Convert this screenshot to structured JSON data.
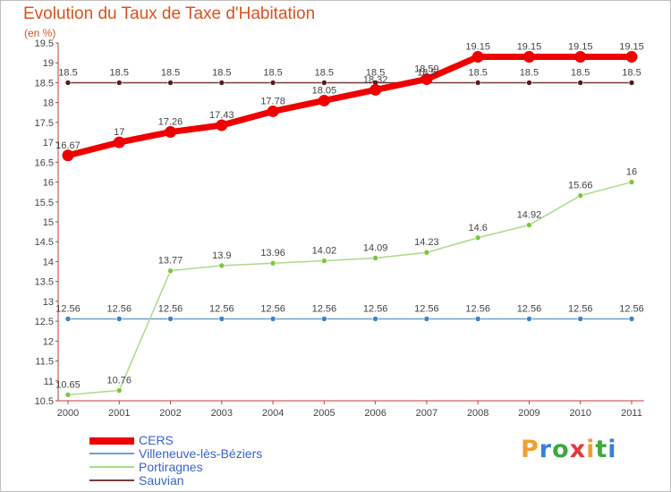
{
  "header": {
    "title": "Evolution du Taux de Taxe d'Habitation",
    "unit": "(en %)"
  },
  "logo": {
    "letters": [
      "P",
      "r",
      "o",
      "x",
      "i",
      "t",
      "i"
    ],
    "colors": [
      "#f0a030",
      "#3a7fd5",
      "#3fa83f",
      "#e03a3a",
      "#f0a030",
      "#3fa83f",
      "#3a7fd5"
    ]
  },
  "chart_data": {
    "type": "line",
    "x": [
      "2000",
      "2001",
      "2002",
      "2003",
      "2004",
      "2005",
      "2006",
      "2007",
      "2008",
      "2009",
      "2010",
      "2011"
    ],
    "ylim": [
      10.5,
      19.5
    ],
    "yticks": [
      "10.5",
      "11",
      "11.5",
      "12",
      "12.5",
      "13",
      "13.5",
      "14",
      "14.5",
      "15",
      "15.5",
      "16",
      "16.5",
      "17",
      "17.5",
      "18",
      "18.5",
      "19",
      "19.5"
    ],
    "grid": false,
    "legend_position": "bottom-left",
    "series": [
      {
        "name": "CERS",
        "color": "#ee0000",
        "values": [
          16.67,
          17,
          17.26,
          17.43,
          17.78,
          18.05,
          18.32,
          18.59,
          19.15,
          19.15,
          19.15,
          19.15
        ],
        "labels": [
          "16.67",
          "17",
          "17.26",
          "17.43",
          "17.78",
          "18.05",
          "18.32",
          "18.59",
          "19.15",
          "19.15",
          "19.15",
          "19.15"
        ]
      },
      {
        "name": "Villeneuve-lès-Béziers",
        "color": "#6fa0c8",
        "marker_color": "#3f82c4",
        "values": [
          12.56,
          12.56,
          12.56,
          12.56,
          12.56,
          12.56,
          12.56,
          12.56,
          12.56,
          12.56,
          12.56,
          12.56
        ],
        "labels": [
          "12.56",
          "12.56",
          "12.56",
          "12.56",
          "12.56",
          "12.56",
          "12.56",
          "12.56",
          "12.56",
          "12.56",
          "12.56",
          "12.56"
        ]
      },
      {
        "name": "Portiragnes",
        "color": "#a8dc88",
        "marker_color": "#7cc640",
        "values": [
          10.65,
          10.76,
          13.77,
          13.9,
          13.96,
          14.02,
          14.09,
          14.23,
          14.6,
          14.92,
          15.66,
          16
        ],
        "labels": [
          "10.65",
          "10.76",
          "13.77",
          "13.9",
          "13.96",
          "14.02",
          "14.09",
          "14.23",
          "14.6",
          "14.92",
          "15.66",
          "16"
        ]
      },
      {
        "name": "Sauvian",
        "color": "#7a3a3a",
        "marker_color": "#5a1a1a",
        "values": [
          18.5,
          18.5,
          18.5,
          18.5,
          18.5,
          18.5,
          18.5,
          18.5,
          18.5,
          18.5,
          18.5,
          18.5
        ],
        "labels": [
          "18.5",
          "18.5",
          "18.5",
          "18.5",
          "18.5",
          "18.5",
          "18.5",
          "18.5",
          "18.5",
          "18.5",
          "18.5",
          "18.5"
        ]
      }
    ]
  }
}
